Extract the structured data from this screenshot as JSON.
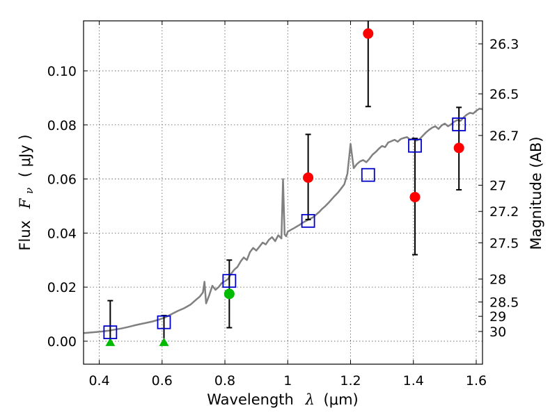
{
  "chart_data": {
    "type": "scatter",
    "xlabel": "Wavelength",
    "xlabel_symbol": "λ",
    "xlabel_unit": "(μm)",
    "ylabel": "Flux",
    "ylabel_symbol": "F",
    "ylabel_subscript": "ν",
    "ylabel_unit": "( μJy )",
    "y2label": "Magnitude (AB)",
    "xlim": [
      0.35,
      1.62
    ],
    "ylim": [
      -0.0085,
      0.1185
    ],
    "grid": true,
    "x_ticks": [
      0.4,
      0.6,
      0.8,
      1.0,
      1.2,
      1.4,
      1.6
    ],
    "x_tick_labels": [
      "0.4",
      "0.6",
      "0.8",
      "1",
      "1.2",
      "1.4",
      "1.6"
    ],
    "y_ticks": [
      0.0,
      0.02,
      0.04,
      0.06,
      0.08,
      0.1
    ],
    "y_tick_labels": [
      "0.00",
      "0.02",
      "0.04",
      "0.06",
      "0.08",
      "0.10"
    ],
    "y2_ticks": [
      {
        "label": "26.3",
        "flux": 0.11
      },
      {
        "label": "26.5",
        "flux": 0.0915
      },
      {
        "label": "26.7",
        "flux": 0.0761
      },
      {
        "label": "27",
        "flux": 0.0577
      },
      {
        "label": "27.2",
        "flux": 0.048
      },
      {
        "label": "27.5",
        "flux": 0.0364
      },
      {
        "label": "28",
        "flux": 0.023
      },
      {
        "label": "28.5",
        "flux": 0.0145
      },
      {
        "label": "29",
        "flux": 0.0092
      },
      {
        "label": "30",
        "flux": 0.0036
      }
    ],
    "colors": {
      "model": "#808080",
      "model_points": "#0000cc",
      "detection": "#ff0000",
      "optical_detection": "#00bb00",
      "upper_limit": "#00bb00",
      "errorbar": "#000000"
    },
    "series": [
      {
        "kind": "model_spectrum",
        "x": [
          0.35,
          0.37,
          0.39,
          0.41,
          0.43,
          0.45,
          0.47,
          0.49,
          0.51,
          0.53,
          0.55,
          0.57,
          0.59,
          0.61,
          0.63,
          0.65,
          0.67,
          0.69,
          0.71,
          0.72,
          0.73,
          0.735,
          0.74,
          0.75,
          0.76,
          0.77,
          0.78,
          0.79,
          0.8,
          0.81,
          0.82,
          0.83,
          0.84,
          0.85,
          0.86,
          0.87,
          0.88,
          0.89,
          0.9,
          0.91,
          0.92,
          0.93,
          0.94,
          0.95,
          0.96,
          0.97,
          0.98,
          0.985,
          0.99,
          0.995,
          1.0,
          1.01,
          1.02,
          1.03,
          1.04,
          1.05,
          1.06,
          1.07,
          1.08,
          1.09,
          1.1,
          1.11,
          1.12,
          1.13,
          1.14,
          1.15,
          1.16,
          1.17,
          1.18,
          1.19,
          1.2,
          1.21,
          1.22,
          1.23,
          1.24,
          1.25,
          1.26,
          1.27,
          1.28,
          1.29,
          1.3,
          1.31,
          1.32,
          1.33,
          1.34,
          1.35,
          1.36,
          1.37,
          1.38,
          1.39,
          1.4,
          1.41,
          1.42,
          1.43,
          1.44,
          1.45,
          1.46,
          1.47,
          1.48,
          1.49,
          1.5,
          1.51,
          1.52,
          1.53,
          1.54,
          1.55,
          1.56,
          1.57,
          1.58,
          1.59,
          1.6,
          1.61,
          1.62
        ],
        "y": [
          0.003,
          0.0032,
          0.0034,
          0.0036,
          0.0039,
          0.0043,
          0.0047,
          0.0052,
          0.0058,
          0.0063,
          0.0068,
          0.0073,
          0.008,
          0.0088,
          0.01,
          0.0112,
          0.0122,
          0.0135,
          0.0155,
          0.0165,
          0.018,
          0.022,
          0.014,
          0.017,
          0.0205,
          0.019,
          0.02,
          0.0215,
          0.0222,
          0.023,
          0.025,
          0.0265,
          0.0275,
          0.0295,
          0.031,
          0.03,
          0.033,
          0.0345,
          0.0335,
          0.035,
          0.0365,
          0.0358,
          0.0375,
          0.0385,
          0.037,
          0.0392,
          0.038,
          0.06,
          0.0395,
          0.0388,
          0.0405,
          0.0412,
          0.0418,
          0.0425,
          0.0432,
          0.044,
          0.0446,
          0.0452,
          0.0458,
          0.0468,
          0.0478,
          0.049,
          0.05,
          0.0512,
          0.0525,
          0.0538,
          0.055,
          0.0565,
          0.058,
          0.062,
          0.073,
          0.064,
          0.0655,
          0.0665,
          0.067,
          0.0662,
          0.0675,
          0.069,
          0.07,
          0.0712,
          0.0722,
          0.0718,
          0.0735,
          0.074,
          0.0745,
          0.0738,
          0.0748,
          0.0752,
          0.0755,
          0.0745,
          0.0752,
          0.0742,
          0.0748,
          0.076,
          0.0772,
          0.0782,
          0.079,
          0.0795,
          0.0785,
          0.0798,
          0.0805,
          0.0795,
          0.0802,
          0.0812,
          0.0818,
          0.0815,
          0.0828,
          0.0838,
          0.0845,
          0.0842,
          0.0852,
          0.086,
          0.0858
        ]
      },
      {
        "kind": "model_photometry",
        "x": [
          0.435,
          0.606,
          0.814,
          1.065,
          1.256,
          1.405,
          1.545
        ],
        "y": [
          0.0033,
          0.007,
          0.0223,
          0.0445,
          0.0615,
          0.0723,
          0.0802
        ]
      },
      {
        "kind": "observed_detection",
        "x": [
          1.065,
          1.256,
          1.405,
          1.545
        ],
        "y": [
          0.0605,
          0.1138,
          0.0533,
          0.0715
        ],
        "yerr_low": [
          0.0155,
          0.027,
          0.0213,
          0.0155
        ],
        "yerr_high": [
          0.016,
          0.01,
          0.0217,
          0.015
        ]
      },
      {
        "kind": "observed_optical",
        "x": [
          0.814
        ],
        "y": [
          0.0175
        ],
        "yerr_low": [
          0.0125
        ],
        "yerr_high": [
          0.0125
        ]
      },
      {
        "kind": "upper_limit",
        "x": [
          0.435,
          0.606
        ],
        "y": [
          -0.0005,
          -0.0005
        ],
        "err_top": [
          0.0155,
          0.01
        ],
        "err_bottom": [
          0.0002,
          0.0
        ]
      }
    ]
  }
}
